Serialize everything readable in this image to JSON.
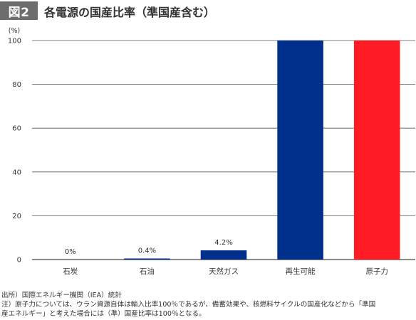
{
  "header": {
    "badge": "図2",
    "title": "各電源の国産比率（準国産含む）"
  },
  "chart_data": {
    "type": "bar",
    "unit_label": "(%)",
    "categories": [
      "石炭",
      "石油",
      "天然ガス",
      "再生可能",
      "原子力"
    ],
    "values": [
      0,
      0.4,
      4.2,
      100,
      100
    ],
    "data_labels": [
      "0%",
      "0.4%",
      "4.2%",
      "",
      ""
    ],
    "bar_colors": [
      "#002f8c",
      "#002f8c",
      "#002f8c",
      "#002f8c",
      "#ff1c24"
    ],
    "ylim": [
      0,
      100
    ],
    "yticks": [
      0,
      20,
      40,
      60,
      80,
      100
    ],
    "grid": true,
    "legend": "none"
  },
  "footer": {
    "source": "出所）国際エネルギー機関（IEA）統計",
    "note_line1": "注）原子力については、ウラン資源自体は輸入比率100％であるが、備蓄効果や、核燃料サイクルの国産化などから「準国",
    "note_line2": "産エネルギー」と考えた場合には（準）国産比率は100％となる。"
  }
}
